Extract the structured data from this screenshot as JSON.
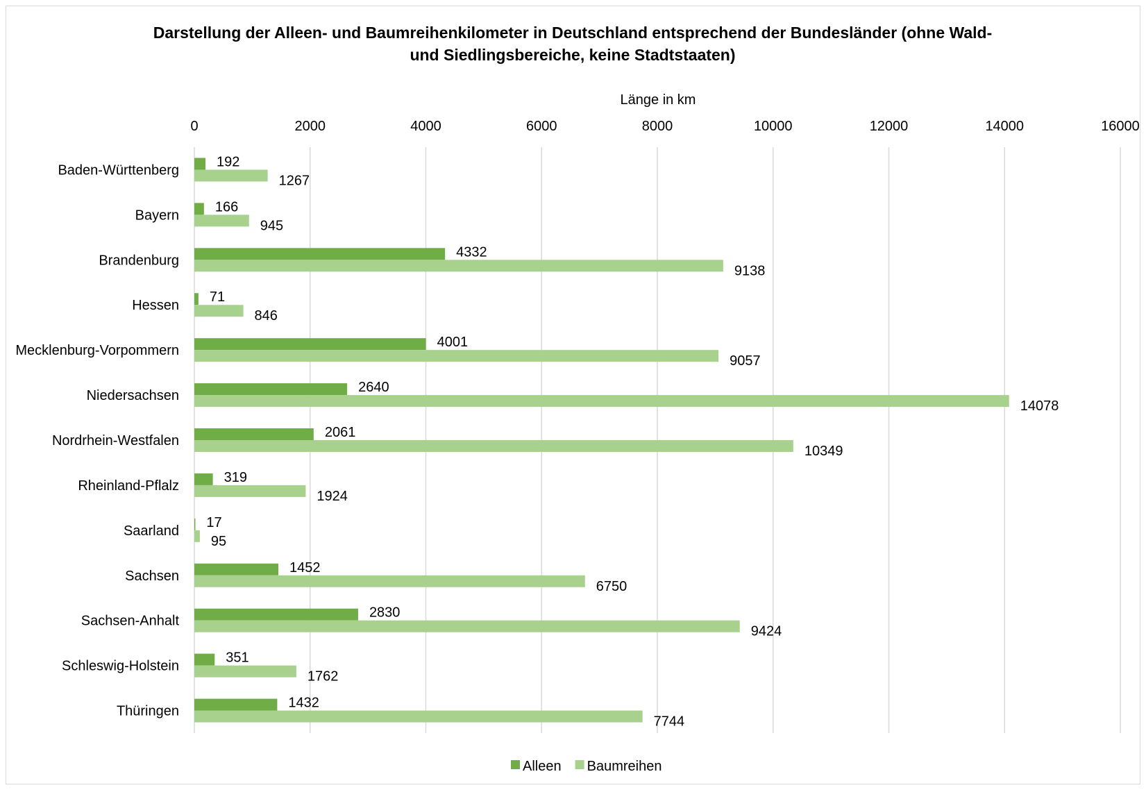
{
  "chart_data": {
    "type": "bar",
    "orientation": "horizontal",
    "title": "Darstellung der Alleen- und Baumreihenkilometer in Deutschland entsprechend der Bundesländer (ohne Wald- und Siedlingsbereiche, keine Stadtstaaten)",
    "title_lines": [
      "Darstellung der Alleen- und Baumreihenkilometer in Deutschland entsprechend der Bundesländer (ohne Wald-",
      "und Siedlingsbereiche, keine Stadtstaaten)"
    ],
    "xlabel": "Länge in km",
    "xlim": [
      0,
      16000
    ],
    "xticks": [
      "0",
      "2000",
      "4000",
      "6000",
      "8000",
      "10000",
      "12000",
      "14000",
      "16000"
    ],
    "xaxis_position": "top",
    "grid": true,
    "legend_position": "bottom",
    "categories": [
      "Baden-Württenberg",
      "Bayern",
      "Brandenburg",
      "Hessen",
      "Mecklenburg-Vorpommern",
      "Niedersachsen",
      "Nordrhein-Westfalen",
      "Rheinland-Pflalz",
      "Saarland",
      "Sachsen",
      "Sachsen-Anhalt",
      "Schleswig-Holstein",
      "Thüringen"
    ],
    "series": [
      {
        "name": "Alleen",
        "color": "#70ad47",
        "values": [
          192,
          166,
          4332,
          71,
          4001,
          2640,
          2061,
          319,
          17,
          1452,
          2830,
          351,
          1432
        ]
      },
      {
        "name": "Baumreihen",
        "color": "#a9d18e",
        "values": [
          1267,
          945,
          9138,
          846,
          9057,
          14078,
          10349,
          1924,
          95,
          6750,
          9424,
          1762,
          7744
        ]
      }
    ]
  }
}
